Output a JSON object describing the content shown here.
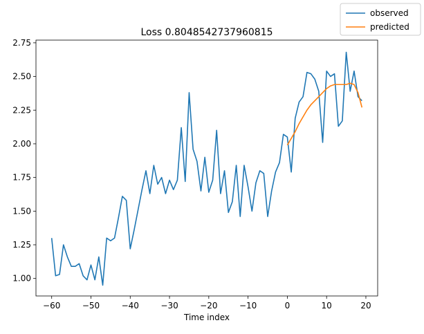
{
  "chart_data": {
    "type": "line",
    "title": "Loss 0.8048542737960815",
    "xlabel": "Time index",
    "ylabel": "",
    "xlim": [
      -64,
      23
    ],
    "ylim": [
      0.87,
      2.77
    ],
    "xticks": [
      -60,
      -50,
      -40,
      -30,
      -20,
      -10,
      0,
      10,
      20
    ],
    "yticks": [
      1.0,
      1.25,
      1.5,
      1.75,
      2.0,
      2.25,
      2.5,
      2.75
    ],
    "ytick_labels": [
      "1.00",
      "1.25",
      "1.50",
      "1.75",
      "2.00",
      "2.25",
      "2.50",
      "2.75"
    ],
    "grid": false,
    "legend_position": "top-right",
    "series": [
      {
        "name": "observed",
        "color": "#1f77b4",
        "x": [
          -60,
          -59,
          -58,
          -57,
          -56,
          -55,
          -54,
          -53,
          -52,
          -51,
          -50,
          -49,
          -48,
          -47,
          -46,
          -45,
          -44,
          -43,
          -42,
          -41,
          -40,
          -39,
          -38,
          -37,
          -36,
          -35,
          -34,
          -33,
          -32,
          -31,
          -30,
          -29,
          -28,
          -27,
          -26,
          -25,
          -24,
          -23,
          -22,
          -21,
          -20,
          -19,
          -18,
          -17,
          -16,
          -15,
          -14,
          -13,
          -12,
          -11,
          -10,
          -9,
          -8,
          -7,
          -6,
          -5,
          -4,
          -3,
          -2,
          -1,
          0,
          1,
          2,
          3,
          4,
          5,
          6,
          7,
          8,
          9,
          10,
          11,
          12,
          13,
          14,
          15,
          16,
          17,
          18,
          19
        ],
        "y": [
          1.3,
          1.02,
          1.03,
          1.25,
          1.16,
          1.09,
          1.09,
          1.11,
          1.02,
          0.99,
          1.1,
          0.99,
          1.16,
          0.95,
          1.3,
          1.28,
          1.3,
          1.45,
          1.61,
          1.58,
          1.22,
          1.36,
          1.51,
          1.66,
          1.8,
          1.63,
          1.84,
          1.7,
          1.75,
          1.63,
          1.73,
          1.66,
          1.73,
          2.12,
          1.72,
          2.38,
          1.96,
          1.87,
          1.65,
          1.9,
          1.64,
          1.73,
          2.1,
          1.63,
          1.8,
          1.49,
          1.57,
          1.84,
          1.46,
          1.84,
          1.68,
          1.5,
          1.71,
          1.8,
          1.78,
          1.46,
          1.65,
          1.79,
          1.86,
          2.07,
          2.05,
          1.79,
          2.19,
          2.31,
          2.35,
          2.53,
          2.52,
          2.48,
          2.39,
          2.01,
          2.54,
          2.5,
          2.52,
          2.13,
          2.17,
          2.68,
          2.39,
          2.54,
          2.35,
          2.32
        ]
      },
      {
        "name": "predicted",
        "color": "#ff7f0e",
        "x": [
          0,
          1,
          2,
          3,
          4,
          5,
          6,
          7,
          8,
          9,
          10,
          11,
          12,
          13,
          14,
          15,
          16,
          17,
          18,
          19
        ],
        "y": [
          1.99,
          2.04,
          2.09,
          2.15,
          2.2,
          2.25,
          2.29,
          2.32,
          2.35,
          2.38,
          2.41,
          2.43,
          2.44,
          2.44,
          2.44,
          2.44,
          2.45,
          2.44,
          2.38,
          2.27
        ]
      }
    ]
  }
}
